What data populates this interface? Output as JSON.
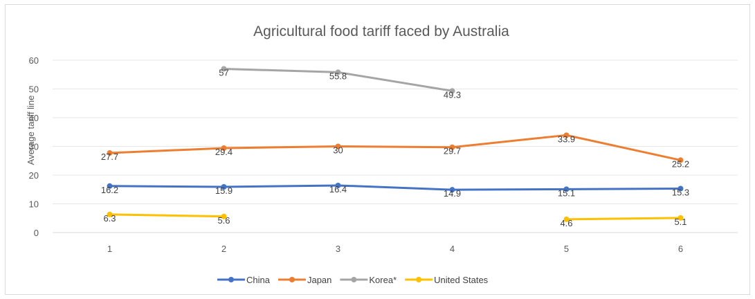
{
  "chart_data": {
    "type": "line",
    "title": "Agricultural food tariff faced by Australia",
    "xlabel": "",
    "ylabel": "Average tariff line",
    "categories": [
      "1",
      "2",
      "3",
      "4",
      "5",
      "6"
    ],
    "ylim": [
      0,
      60
    ],
    "yticks": [
      "0",
      "10",
      "20",
      "30",
      "40",
      "50",
      "60"
    ],
    "grid": true,
    "legend_position": "bottom",
    "series": [
      {
        "name": "China",
        "color": "#4472c4",
        "values": [
          16.2,
          15.9,
          16.4,
          14.9,
          15.1,
          15.3
        ],
        "labels": [
          "16.2",
          "15.9",
          "16.4",
          "14.9",
          "15.1",
          "15.3"
        ]
      },
      {
        "name": "Japan",
        "color": "#ed7d31",
        "values": [
          27.7,
          29.4,
          30,
          29.7,
          33.9,
          25.2
        ],
        "labels": [
          "27.7",
          "29.4",
          "30",
          "29.7",
          "33.9",
          "25.2"
        ]
      },
      {
        "name": "Korea*",
        "color": "#a5a5a5",
        "values": [
          null,
          57,
          55.8,
          49.3,
          null,
          null
        ],
        "labels": [
          null,
          "57",
          "55.8",
          "49.3",
          null,
          null
        ]
      },
      {
        "name": "United States",
        "color": "#ffc000",
        "values": [
          6.3,
          5.6,
          null,
          null,
          4.6,
          5.1
        ],
        "labels": [
          "6.3",
          "5.6",
          null,
          null,
          "4.6",
          "5.1"
        ]
      }
    ]
  }
}
